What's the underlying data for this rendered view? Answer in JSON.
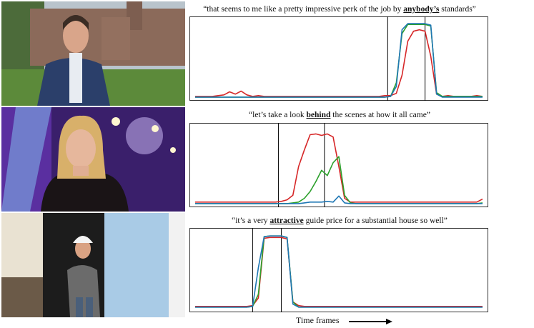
{
  "figure": {
    "xlabel": "Time frames",
    "series_colors": {
      "red": "#d62728",
      "green": "#2ca02c",
      "blue": "#1f77b4"
    }
  },
  "rows": [
    {
      "image": "man-in-front-of-castle",
      "caption": {
        "before": "“that seems to me like a pretty impressive perk of the job by ",
        "keyword": "anybody’s",
        "after": " standards”"
      }
    },
    {
      "image": "woman-on-dance-show-set",
      "caption": {
        "before": "“let’s take a look ",
        "keyword": "behind",
        "after": " the scenes at how it all came”"
      }
    },
    {
      "image": "man-in-hard-hat-at-door",
      "caption": {
        "before": "“it’s a very ",
        "keyword": "attractive",
        "after": " guide price for a substantial house so well”"
      }
    }
  ],
  "chart_data": [
    {
      "type": "line",
      "x": [
        0,
        2,
        4,
        6,
        8,
        10,
        12,
        14,
        16,
        18,
        20,
        22,
        24,
        26,
        28,
        30,
        32,
        34,
        36,
        38,
        40,
        42,
        44,
        46,
        48,
        50,
        52,
        54,
        56,
        58,
        60,
        62,
        64,
        66,
        68,
        70,
        72,
        74,
        76,
        78,
        80,
        82,
        84,
        86,
        88,
        90,
        92,
        94,
        96,
        98,
        100
      ],
      "ylim": [
        0,
        1
      ],
      "keyword_window": [
        67,
        80
      ],
      "series": [
        {
          "color": "red",
          "values": [
            0.02,
            0.02,
            0.02,
            0.02,
            0.03,
            0.04,
            0.08,
            0.05,
            0.09,
            0.04,
            0.02,
            0.03,
            0.02,
            0.02,
            0.02,
            0.02,
            0.02,
            0.02,
            0.02,
            0.02,
            0.02,
            0.02,
            0.02,
            0.02,
            0.02,
            0.02,
            0.02,
            0.02,
            0.02,
            0.02,
            0.02,
            0.02,
            0.02,
            0.03,
            0.03,
            0.06,
            0.3,
            0.75,
            0.88,
            0.9,
            0.88,
            0.55,
            0.05,
            0.02,
            0.03,
            0.02,
            0.02,
            0.02,
            0.02,
            0.03,
            0.02
          ]
        },
        {
          "color": "green",
          "values": [
            0.01,
            0.01,
            0.01,
            0.01,
            0.01,
            0.01,
            0.01,
            0.01,
            0.01,
            0.01,
            0.01,
            0.01,
            0.01,
            0.01,
            0.01,
            0.01,
            0.01,
            0.01,
            0.01,
            0.01,
            0.01,
            0.01,
            0.01,
            0.01,
            0.01,
            0.01,
            0.01,
            0.01,
            0.01,
            0.01,
            0.01,
            0.01,
            0.01,
            0.01,
            0.02,
            0.2,
            0.85,
            0.97,
            0.97,
            0.97,
            0.97,
            0.95,
            0.07,
            0.02,
            0.02,
            0.02,
            0.02,
            0.02,
            0.02,
            0.02,
            0.02
          ]
        },
        {
          "color": "blue",
          "values": [
            0.01,
            0.01,
            0.01,
            0.01,
            0.01,
            0.01,
            0.01,
            0.01,
            0.01,
            0.01,
            0.01,
            0.01,
            0.01,
            0.01,
            0.01,
            0.01,
            0.01,
            0.01,
            0.01,
            0.01,
            0.01,
            0.01,
            0.01,
            0.01,
            0.01,
            0.01,
            0.01,
            0.01,
            0.01,
            0.01,
            0.01,
            0.01,
            0.01,
            0.01,
            0.02,
            0.15,
            0.9,
            0.98,
            0.98,
            0.98,
            0.98,
            0.96,
            0.05,
            0.01,
            0.01,
            0.01,
            0.01,
            0.01,
            0.01,
            0.01,
            0.01
          ]
        }
      ]
    },
    {
      "type": "line",
      "x": [
        0,
        2,
        4,
        6,
        8,
        10,
        12,
        14,
        16,
        18,
        20,
        22,
        24,
        26,
        28,
        30,
        32,
        34,
        36,
        38,
        40,
        42,
        44,
        46,
        48,
        50,
        52,
        54,
        56,
        58,
        60,
        62,
        64,
        66,
        68,
        70,
        72,
        74,
        76,
        78,
        80,
        82,
        84,
        86,
        88,
        90,
        92,
        94,
        96,
        98,
        100
      ],
      "ylim": [
        0,
        1
      ],
      "keyword_window": [
        29,
        45
      ],
      "series": [
        {
          "color": "red",
          "values": [
            0.03,
            0.03,
            0.03,
            0.03,
            0.03,
            0.03,
            0.03,
            0.03,
            0.03,
            0.03,
            0.03,
            0.03,
            0.03,
            0.03,
            0.03,
            0.04,
            0.06,
            0.12,
            0.5,
            0.72,
            0.92,
            0.93,
            0.91,
            0.93,
            0.89,
            0.5,
            0.08,
            0.03,
            0.03,
            0.03,
            0.03,
            0.03,
            0.03,
            0.03,
            0.03,
            0.03,
            0.03,
            0.03,
            0.03,
            0.03,
            0.03,
            0.03,
            0.03,
            0.03,
            0.03,
            0.03,
            0.03,
            0.03,
            0.03,
            0.03,
            0.07
          ]
        },
        {
          "color": "green",
          "values": [
            0.01,
            0.01,
            0.01,
            0.01,
            0.01,
            0.01,
            0.01,
            0.01,
            0.01,
            0.01,
            0.01,
            0.01,
            0.01,
            0.01,
            0.01,
            0.01,
            0.01,
            0.02,
            0.03,
            0.08,
            0.17,
            0.3,
            0.45,
            0.38,
            0.55,
            0.63,
            0.12,
            0.02,
            0.01,
            0.01,
            0.01,
            0.01,
            0.01,
            0.01,
            0.01,
            0.01,
            0.01,
            0.01,
            0.01,
            0.01,
            0.01,
            0.01,
            0.01,
            0.01,
            0.01,
            0.01,
            0.01,
            0.01,
            0.01,
            0.01,
            0.02
          ]
        },
        {
          "color": "blue",
          "values": [
            0.01,
            0.01,
            0.01,
            0.01,
            0.01,
            0.01,
            0.01,
            0.01,
            0.01,
            0.01,
            0.01,
            0.01,
            0.01,
            0.01,
            0.01,
            0.01,
            0.01,
            0.01,
            0.01,
            0.02,
            0.03,
            0.03,
            0.03,
            0.04,
            0.03,
            0.11,
            0.02,
            0.01,
            0.01,
            0.01,
            0.01,
            0.01,
            0.01,
            0.01,
            0.01,
            0.01,
            0.01,
            0.01,
            0.01,
            0.01,
            0.01,
            0.01,
            0.01,
            0.01,
            0.01,
            0.01,
            0.01,
            0.01,
            0.01,
            0.01,
            0.01
          ]
        }
      ]
    },
    {
      "type": "line",
      "x": [
        0,
        2,
        4,
        6,
        8,
        10,
        12,
        14,
        16,
        18,
        20,
        22,
        24,
        26,
        28,
        30,
        32,
        34,
        36,
        38,
        40,
        42,
        44,
        46,
        48,
        50,
        52,
        54,
        56,
        58,
        60,
        62,
        64,
        66,
        68,
        70,
        72,
        74,
        76,
        78,
        80,
        82,
        84,
        86,
        88,
        90,
        92,
        94,
        96,
        98,
        100
      ],
      "ylim": [
        0,
        1
      ],
      "keyword_window": [
        20,
        30
      ],
      "series": [
        {
          "color": "red",
          "values": [
            0.04,
            0.04,
            0.04,
            0.04,
            0.04,
            0.04,
            0.04,
            0.04,
            0.04,
            0.04,
            0.05,
            0.15,
            0.94,
            0.95,
            0.95,
            0.95,
            0.93,
            0.1,
            0.05,
            0.04,
            0.04,
            0.04,
            0.04,
            0.04,
            0.04,
            0.04,
            0.04,
            0.04,
            0.04,
            0.04,
            0.04,
            0.04,
            0.04,
            0.04,
            0.04,
            0.04,
            0.04,
            0.04,
            0.04,
            0.04,
            0.04,
            0.04,
            0.04,
            0.04,
            0.04,
            0.04,
            0.04,
            0.04,
            0.04,
            0.04,
            0.04
          ]
        },
        {
          "color": "green",
          "values": [
            0.03,
            0.03,
            0.03,
            0.03,
            0.03,
            0.03,
            0.03,
            0.03,
            0.03,
            0.03,
            0.04,
            0.2,
            0.96,
            0.97,
            0.97,
            0.97,
            0.95,
            0.1,
            0.03,
            0.03,
            0.03,
            0.03,
            0.03,
            0.03,
            0.03,
            0.03,
            0.03,
            0.03,
            0.03,
            0.03,
            0.03,
            0.03,
            0.03,
            0.03,
            0.03,
            0.03,
            0.03,
            0.03,
            0.03,
            0.03,
            0.03,
            0.03,
            0.03,
            0.03,
            0.03,
            0.03,
            0.03,
            0.03,
            0.03,
            0.03,
            0.03
          ]
        },
        {
          "color": "blue",
          "values": [
            0.03,
            0.03,
            0.03,
            0.03,
            0.03,
            0.03,
            0.03,
            0.03,
            0.03,
            0.03,
            0.04,
            0.55,
            0.96,
            0.97,
            0.97,
            0.97,
            0.95,
            0.07,
            0.03,
            0.03,
            0.03,
            0.03,
            0.03,
            0.03,
            0.03,
            0.03,
            0.03,
            0.03,
            0.03,
            0.03,
            0.03,
            0.03,
            0.03,
            0.03,
            0.03,
            0.03,
            0.03,
            0.03,
            0.03,
            0.03,
            0.03,
            0.03,
            0.03,
            0.03,
            0.03,
            0.03,
            0.03,
            0.03,
            0.03,
            0.03,
            0.03
          ]
        }
      ]
    }
  ]
}
